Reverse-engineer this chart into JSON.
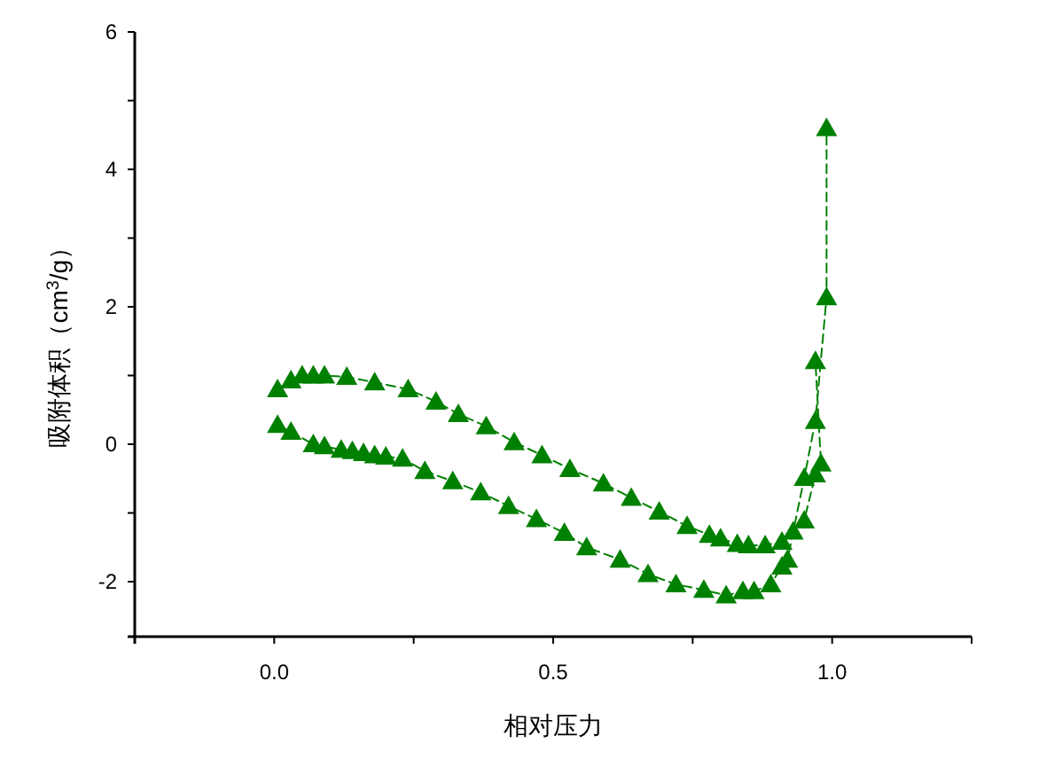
{
  "chart_data": {
    "type": "line",
    "xlabel": "相对压力",
    "ylabel": "吸附体积（cm$^{3}$/g）",
    "xlim": [
      -0.25,
      1.25
    ],
    "ylim": [
      -2.8,
      6
    ],
    "xticks": [
      {
        "value": -0.25,
        "label": null
      },
      {
        "value": 0,
        "label": "0.0"
      },
      {
        "value": 0.25,
        "label": null
      },
      {
        "value": 0.5,
        "label": "0.5"
      },
      {
        "value": 0.75,
        "label": null
      },
      {
        "value": 1,
        "label": "1.0"
      },
      {
        "value": 1.25,
        "label": null
      }
    ],
    "yticks": [
      -2,
      {
        "value": -1,
        "label": null
      },
      0,
      {
        "value": 1,
        "label": null
      },
      2,
      {
        "value": 3,
        "label": null
      },
      4,
      {
        "value": 5,
        "label": null
      },
      6
    ],
    "marker": "triangle",
    "line_style": "dashed",
    "series": [
      {
        "color": "#008000",
        "x": [
          0.006,
          0.03,
          0.07,
          0.09,
          0.12,
          0.14,
          0.16,
          0.18,
          0.2,
          0.23,
          0.27,
          0.32,
          0.37,
          0.42,
          0.47,
          0.52,
          0.56,
          0.62,
          0.67,
          0.72,
          0.77,
          0.81,
          0.84,
          0.86,
          0.89,
          0.91,
          0.92,
          0.95,
          0.97,
          0.99,
          0.99
        ],
        "values": [
          0.28,
          0.18,
          0.0,
          -0.03,
          -0.08,
          -0.1,
          -0.13,
          -0.16,
          -0.18,
          -0.21,
          -0.39,
          -0.54,
          -0.7,
          -0.9,
          -1.09,
          -1.29,
          -1.5,
          -1.68,
          -1.89,
          -2.04,
          -2.12,
          -2.2,
          -2.14,
          -2.14,
          -2.04,
          -1.78,
          -1.68,
          -0.49,
          0.34,
          2.14,
          4.6
        ]
      },
      {
        "color": "#008000",
        "x": [
          0.006,
          0.03,
          0.05,
          0.07,
          0.09,
          0.13,
          0.18,
          0.24,
          0.29,
          0.33,
          0.38,
          0.43,
          0.48,
          0.53,
          0.59,
          0.64,
          0.69,
          0.74,
          0.78,
          0.8,
          0.83,
          0.85,
          0.88,
          0.91,
          0.93,
          0.95,
          0.97,
          0.98,
          0.97
        ],
        "values": [
          0.8,
          0.93,
          1.0,
          1.0,
          1.0,
          0.98,
          0.9,
          0.8,
          0.62,
          0.44,
          0.26,
          0.03,
          -0.16,
          -0.36,
          -0.57,
          -0.78,
          -0.98,
          -1.19,
          -1.32,
          -1.37,
          -1.45,
          -1.47,
          -1.47,
          -1.42,
          -1.27,
          -1.11,
          -0.44,
          -0.28,
          1.21
        ]
      }
    ]
  }
}
